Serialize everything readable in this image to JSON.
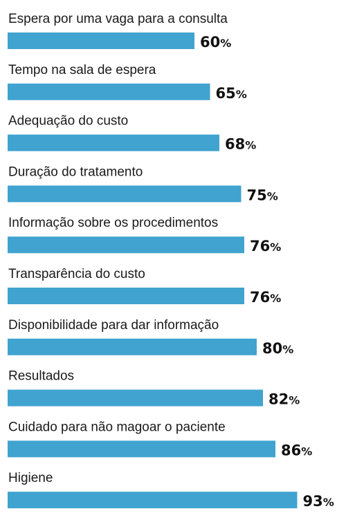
{
  "colors": {
    "bar": "#41a3cf",
    "text": "#1a1a1a"
  },
  "chart_data": {
    "type": "bar",
    "orientation": "horizontal",
    "unit": "%",
    "categories": [
      "Espera por uma vaga para a consulta",
      "Tempo na sala de espera",
      "Adequação do custo",
      "Duração do tratamento",
      "Informação sobre os procedimentos",
      "Transparência do custo",
      "Disponibilidade para dar informação",
      "Resultados",
      "Cuidado para não magoar o paciente",
      "Higiene"
    ],
    "values": [
      60,
      65,
      68,
      75,
      76,
      76,
      80,
      82,
      86,
      93
    ]
  }
}
